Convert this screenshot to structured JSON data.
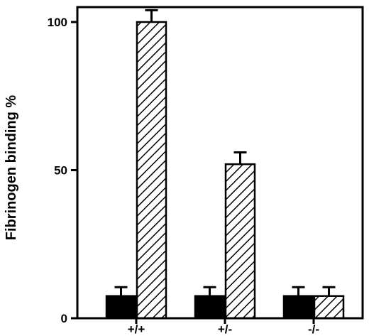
{
  "chart_data": {
    "type": "bar",
    "title": "",
    "xlabel": "",
    "ylabel": "Fibrinogen binding %",
    "categories": [
      "+/+",
      "+/-",
      "-/-"
    ],
    "series": [
      {
        "fill": "solid-black",
        "values": [
          7.5,
          7.5,
          7.5
        ],
        "errors": [
          3,
          3,
          3
        ]
      },
      {
        "fill": "diagonal-hatch",
        "values": [
          100,
          52,
          7.5
        ],
        "errors": [
          4,
          4,
          3
        ]
      }
    ],
    "yticks": [
      0,
      50,
      100
    ],
    "ytick_labels": [
      "0",
      "50",
      "100"
    ],
    "ylim": [
      0,
      108
    ],
    "grid": false,
    "legend": "none",
    "colors": {
      "solid": "#000000",
      "hatch": "#000000",
      "background": "#ffffff"
    }
  }
}
